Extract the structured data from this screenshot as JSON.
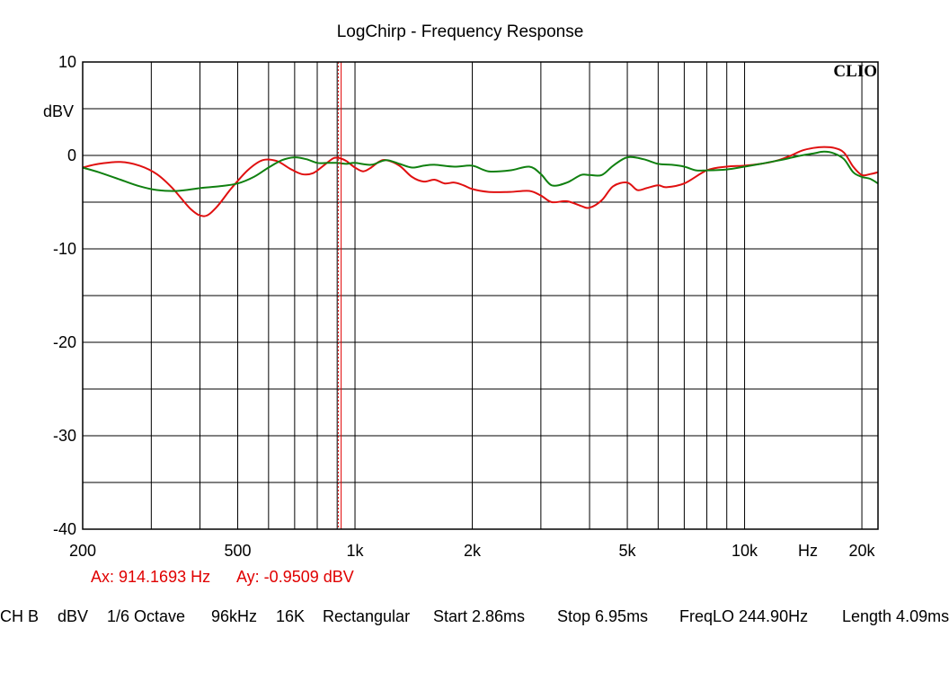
{
  "chart_data": {
    "type": "line",
    "title": "LogChirp - Frequency Response",
    "brand": "CLIO",
    "x_scale": "log",
    "xlim": [
      200,
      22000
    ],
    "ylim": [
      -40,
      10
    ],
    "ylabel": "dBV",
    "xlabel": "Hz",
    "grid": true,
    "y_ticks": [
      {
        "value": 10,
        "label": "10"
      },
      {
        "value": 0,
        "label": "0"
      },
      {
        "value": -10,
        "label": "-10"
      },
      {
        "value": -20,
        "label": "-20"
      },
      {
        "value": -30,
        "label": "-30"
      },
      {
        "value": -40,
        "label": "-40"
      }
    ],
    "x_ticks": [
      {
        "value": 200,
        "label": "200"
      },
      {
        "value": 500,
        "label": "500"
      },
      {
        "value": 1000,
        "label": "1k"
      },
      {
        "value": 2000,
        "label": "2k"
      },
      {
        "value": 5000,
        "label": "5k"
      },
      {
        "value": 10000,
        "label": "10k"
      },
      {
        "value": 20000,
        "label": "20k"
      }
    ],
    "cursor": {
      "x": 914.1693,
      "y": -0.9509,
      "label_x": "Ax: 914.1693 Hz",
      "label_y": "Ay: -0.9509 dBV"
    },
    "series": [
      {
        "color": "#e01010",
        "points": [
          [
            200,
            -1.3
          ],
          [
            220,
            -0.9
          ],
          [
            250,
            -0.7
          ],
          [
            280,
            -1.1
          ],
          [
            310,
            -2
          ],
          [
            340,
            -3.5
          ],
          [
            380,
            -5.8
          ],
          [
            410,
            -6.5
          ],
          [
            440,
            -5.6
          ],
          [
            480,
            -3.6
          ],
          [
            530,
            -1.6
          ],
          [
            580,
            -0.5
          ],
          [
            630,
            -0.6
          ],
          [
            680,
            -1.4
          ],
          [
            730,
            -2
          ],
          [
            780,
            -1.9
          ],
          [
            830,
            -1.1
          ],
          [
            880,
            -0.3
          ],
          [
            914,
            -0.3
          ],
          [
            950,
            -0.6
          ],
          [
            1000,
            -1.3
          ],
          [
            1050,
            -1.7
          ],
          [
            1100,
            -1.3
          ],
          [
            1150,
            -0.7
          ],
          [
            1200,
            -0.5
          ],
          [
            1300,
            -1.1
          ],
          [
            1400,
            -2.3
          ],
          [
            1500,
            -2.8
          ],
          [
            1600,
            -2.6
          ],
          [
            1700,
            -3
          ],
          [
            1800,
            -2.9
          ],
          [
            1900,
            -3.2
          ],
          [
            2000,
            -3.6
          ],
          [
            2200,
            -3.9
          ],
          [
            2500,
            -3.9
          ],
          [
            2800,
            -3.8
          ],
          [
            3000,
            -4.3
          ],
          [
            3200,
            -5
          ],
          [
            3500,
            -4.9
          ],
          [
            3800,
            -5.4
          ],
          [
            4000,
            -5.6
          ],
          [
            4300,
            -4.8
          ],
          [
            4600,
            -3.3
          ],
          [
            5000,
            -2.9
          ],
          [
            5300,
            -3.7
          ],
          [
            5600,
            -3.5
          ],
          [
            6000,
            -3.2
          ],
          [
            6300,
            -3.4
          ],
          [
            7000,
            -3
          ],
          [
            8000,
            -1.6
          ],
          [
            9000,
            -1.2
          ],
          [
            10000,
            -1.1
          ],
          [
            11000,
            -0.9
          ],
          [
            12000,
            -0.6
          ],
          [
            13000,
            -0.1
          ],
          [
            14000,
            0.5
          ],
          [
            15000,
            0.8
          ],
          [
            16000,
            0.9
          ],
          [
            17000,
            0.8
          ],
          [
            18000,
            0.3
          ],
          [
            19000,
            -1.2
          ],
          [
            20000,
            -2.1
          ],
          [
            21000,
            -2
          ],
          [
            22000,
            -1.8
          ]
        ]
      },
      {
        "color": "#108010",
        "points": [
          [
            200,
            -1.3
          ],
          [
            220,
            -1.8
          ],
          [
            250,
            -2.6
          ],
          [
            280,
            -3.3
          ],
          [
            310,
            -3.7
          ],
          [
            350,
            -3.8
          ],
          [
            400,
            -3.5
          ],
          [
            450,
            -3.3
          ],
          [
            500,
            -3
          ],
          [
            550,
            -2.3
          ],
          [
            600,
            -1.3
          ],
          [
            650,
            -0.5
          ],
          [
            700,
            -0.2
          ],
          [
            750,
            -0.4
          ],
          [
            800,
            -0.8
          ],
          [
            850,
            -0.8
          ],
          [
            900,
            -0.8
          ],
          [
            950,
            -0.9
          ],
          [
            1000,
            -0.8
          ],
          [
            1100,
            -1
          ],
          [
            1200,
            -0.5
          ],
          [
            1300,
            -0.9
          ],
          [
            1400,
            -1.3
          ],
          [
            1500,
            -1.1
          ],
          [
            1600,
            -1
          ],
          [
            1800,
            -1.2
          ],
          [
            2000,
            -1.1
          ],
          [
            2200,
            -1.7
          ],
          [
            2500,
            -1.6
          ],
          [
            2800,
            -1.2
          ],
          [
            3000,
            -2
          ],
          [
            3200,
            -3.2
          ],
          [
            3500,
            -2.9
          ],
          [
            3800,
            -2.1
          ],
          [
            4000,
            -2.1
          ],
          [
            4300,
            -2.1
          ],
          [
            4600,
            -1.1
          ],
          [
            5000,
            -0.2
          ],
          [
            5500,
            -0.4
          ],
          [
            6000,
            -0.9
          ],
          [
            6500,
            -1
          ],
          [
            7000,
            -1.2
          ],
          [
            7500,
            -1.6
          ],
          [
            8000,
            -1.6
          ],
          [
            9000,
            -1.5
          ],
          [
            10000,
            -1.2
          ],
          [
            11000,
            -0.9
          ],
          [
            12000,
            -0.6
          ],
          [
            13000,
            -0.3
          ],
          [
            14000,
            0
          ],
          [
            15000,
            0.2
          ],
          [
            16000,
            0.4
          ],
          [
            17000,
            0.2
          ],
          [
            18000,
            -0.4
          ],
          [
            19000,
            -1.8
          ],
          [
            20000,
            -2.3
          ],
          [
            21000,
            -2.5
          ],
          [
            22000,
            -3
          ]
        ]
      }
    ]
  },
  "status_bar": {
    "channel": "CH B",
    "unit": "dBV",
    "smoothing": "1/6 Octave",
    "sample_rate": "96kHz",
    "fft_size": "16K",
    "window": "Rectangular",
    "start": "Start 2.86ms",
    "stop": "Stop 6.95ms",
    "freq_lo": "FreqLO 244.90Hz",
    "length": "Length 4.09ms"
  }
}
